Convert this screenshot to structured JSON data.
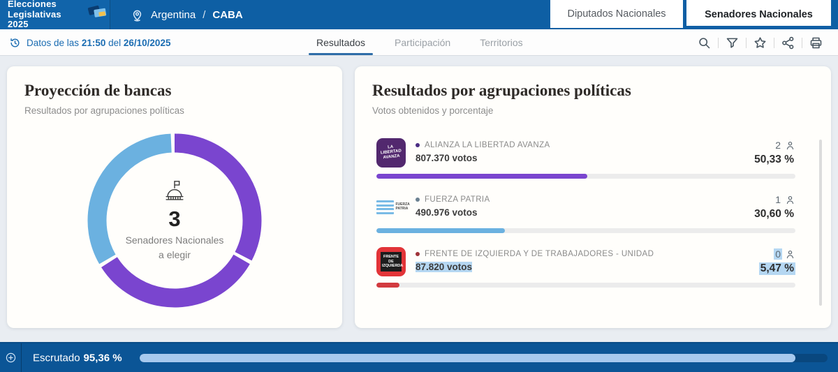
{
  "header": {
    "logo": {
      "line1": "Elecciones",
      "line2": "Legislativas 2025"
    },
    "location": {
      "country": "Argentina",
      "separator": "/",
      "district": "CABA"
    },
    "tabs": [
      {
        "label": "Diputados Nacionales",
        "active": false
      },
      {
        "label": "Senadores Nacionales",
        "active": true
      }
    ]
  },
  "toolbar": {
    "update_prefix": "Datos de las",
    "update_time": "21:50",
    "update_connector": "del",
    "update_date": "26/10/2025",
    "tabs": [
      {
        "label": "Resultados",
        "active": true
      },
      {
        "label": "Participación",
        "active": false
      },
      {
        "label": "Territorios",
        "active": false
      }
    ],
    "icons": [
      "search",
      "filter",
      "favorite",
      "share",
      "print"
    ]
  },
  "seat_projection": {
    "title": "Proyección de bancas",
    "subtitle": "Resultados por agrupaciones políticas",
    "total_seats": "3",
    "center_line1": "Senadores Nacionales",
    "center_line2": "a elegir"
  },
  "results": {
    "title": "Resultados por agrupaciones políticas",
    "subtitle": "Votos obtenidos y porcentaje",
    "parties": [
      {
        "name": "ALIANZA LA LIBERTAD AVANZA",
        "logo_text": "LA LIBERTAD AVANZA",
        "votes": "807.370 votos",
        "seats": "2",
        "percent": "50,33 %",
        "percent_value": 50.33,
        "color": "#7a45cf",
        "bullet_color": "#4b2d83",
        "highlighted": false
      },
      {
        "name": "FUERZA PATRIA",
        "logo_text": "FUERZA PATRIA",
        "votes": "490.976 votos",
        "seats": "1",
        "percent": "30,60 %",
        "percent_value": 30.6,
        "color": "#6bb1e0",
        "bullet_color": "#6b8191",
        "highlighted": false
      },
      {
        "name": "FRENTE DE IZQUIERDA Y DE TRABAJADORES - UNIDAD",
        "logo_text": "FRENTE DE IZQUIERDA",
        "votes": "87.820 votos",
        "seats": "0",
        "percent": "5,47 %",
        "percent_value": 5.47,
        "color": "#d23a3f",
        "bullet_color": "#a0343a",
        "highlighted": true
      }
    ]
  },
  "footer": {
    "label": "Escrutado",
    "percent": "95,36 %",
    "percent_value": 95.36
  },
  "colors": {
    "header_blue": "#0e5fa4",
    "footer_blue": "#0b5596",
    "footer_fill": "#a6c9ee",
    "selection_highlight": "#b5d7f2",
    "active_tab_underline": "#2e6da8"
  },
  "chart_data": [
    {
      "type": "pie",
      "variant": "donut",
      "title": "Proyección de bancas",
      "center_text": "3 Senadores Nacionales a elegir",
      "labels": [
        "ALIANZA LA LIBERTAD AVANZA",
        "FUERZA PATRIA"
      ],
      "values": [
        2,
        1
      ],
      "total_seats": 3,
      "colors": [
        "#7a45cf",
        "#6bb1e0"
      ],
      "legend_position": "none"
    },
    {
      "type": "bar",
      "orientation": "horizontal",
      "title": "Resultados por agrupaciones políticas",
      "categories": [
        "ALIANZA LA LIBERTAD AVANZA",
        "FUERZA PATRIA",
        "FRENTE DE IZQUIERDA Y DE TRABAJADORES - UNIDAD"
      ],
      "values": [
        50.33,
        30.6,
        5.47
      ],
      "votes": [
        807370,
        490976,
        87820
      ],
      "seats": [
        2,
        1,
        0
      ],
      "colors": [
        "#7a45cf",
        "#6bb1e0",
        "#d23a3f"
      ],
      "xlim": [
        0,
        100
      ]
    }
  ]
}
